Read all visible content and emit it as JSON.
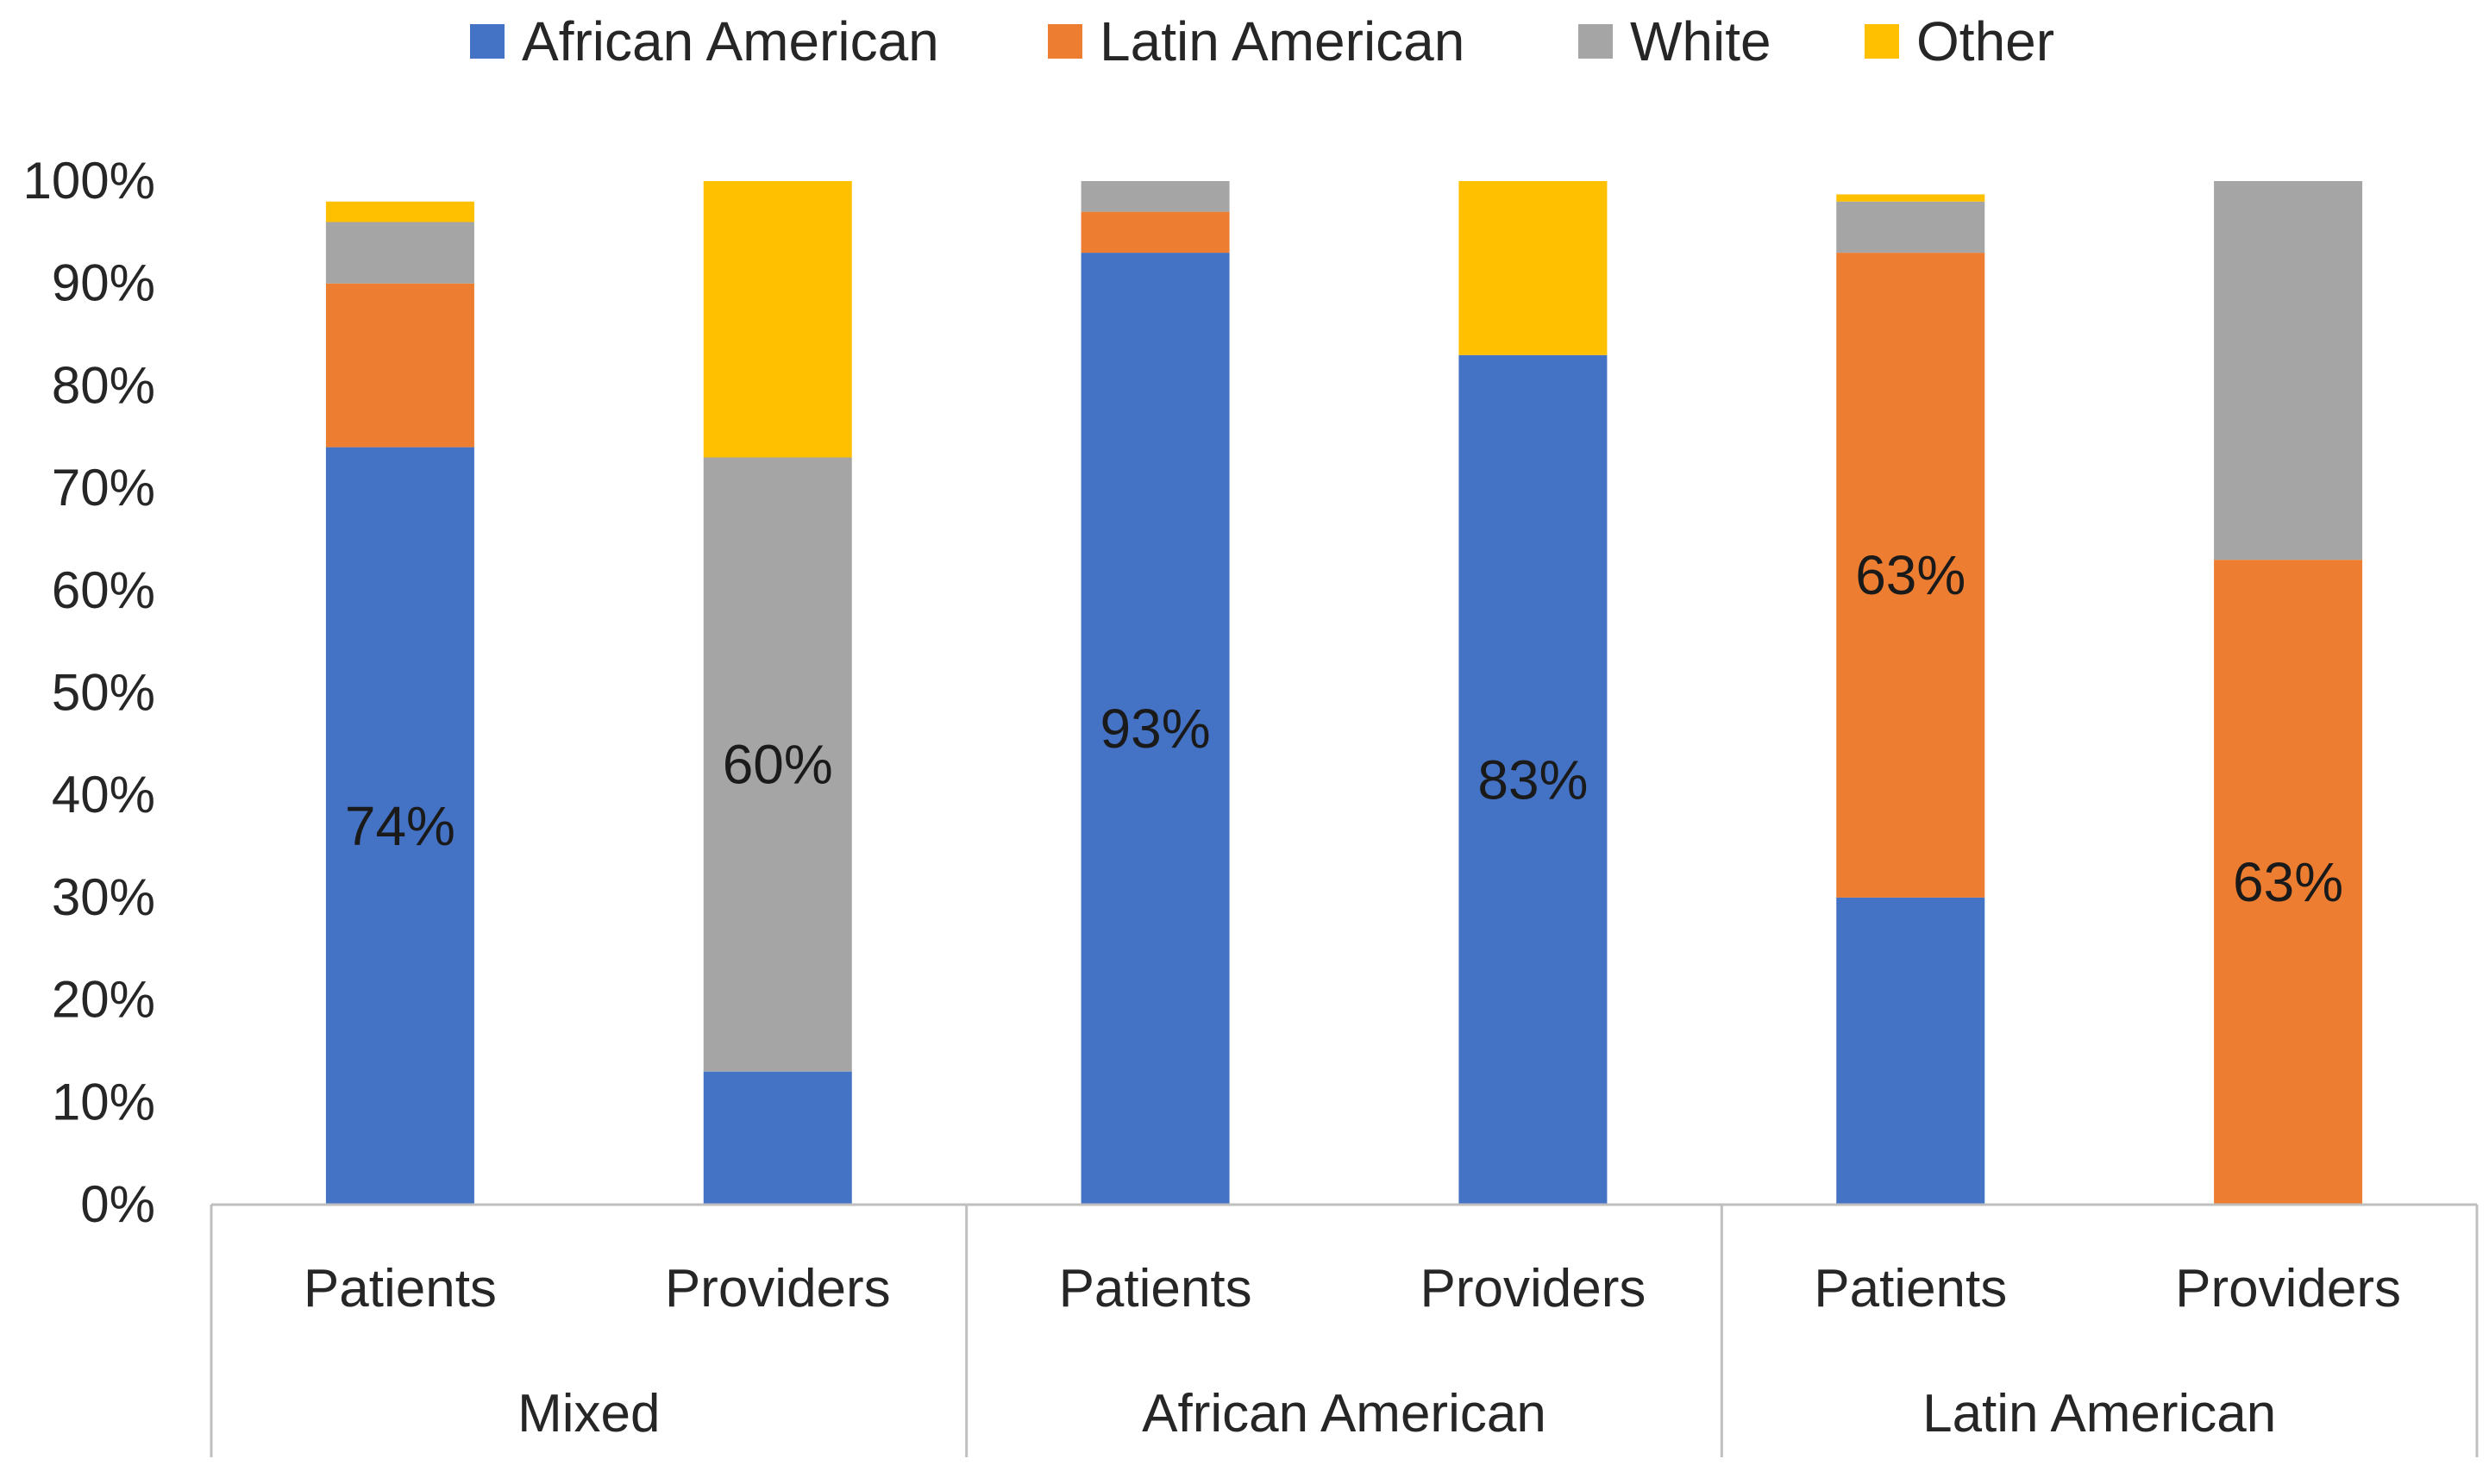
{
  "chart_data": {
    "type": "bar",
    "stacked": true,
    "percent_axis": true,
    "legend_position": "top",
    "grid": false,
    "ylim": [
      0,
      100
    ],
    "yticks": [
      "0%",
      "10%",
      "20%",
      "30%",
      "40%",
      "50%",
      "60%",
      "70%",
      "80%",
      "90%",
      "100%"
    ],
    "groups": [
      {
        "label": "Mixed",
        "categories": [
          "Patients",
          "Providers"
        ]
      },
      {
        "label": "African American",
        "categories": [
          "Patients",
          "Providers"
        ]
      },
      {
        "label": "Latin American",
        "categories": [
          "Patients",
          "Providers"
        ]
      }
    ],
    "series": [
      {
        "name": "African American",
        "color": "#4472C4",
        "values": [
          74,
          13,
          93,
          83,
          30,
          0
        ]
      },
      {
        "name": "Latin American",
        "color": "#ED7D31",
        "values": [
          16,
          0,
          4,
          0,
          63,
          63
        ]
      },
      {
        "name": "White",
        "color": "#A5A5A5",
        "values": [
          6,
          60,
          3,
          0,
          5,
          37
        ]
      },
      {
        "name": "Other",
        "color": "#FFC000",
        "values": [
          2,
          27,
          0,
          17,
          0.7,
          0
        ]
      }
    ],
    "data_labels": [
      {
        "bar": 0,
        "series": 0,
        "text": "74%"
      },
      {
        "bar": 1,
        "series": 2,
        "text": "60%"
      },
      {
        "bar": 2,
        "series": 0,
        "text": "93%"
      },
      {
        "bar": 3,
        "series": 0,
        "text": "83%"
      },
      {
        "bar": 4,
        "series": 1,
        "text": "63%"
      },
      {
        "bar": 5,
        "series": 1,
        "text": "63%"
      }
    ]
  }
}
